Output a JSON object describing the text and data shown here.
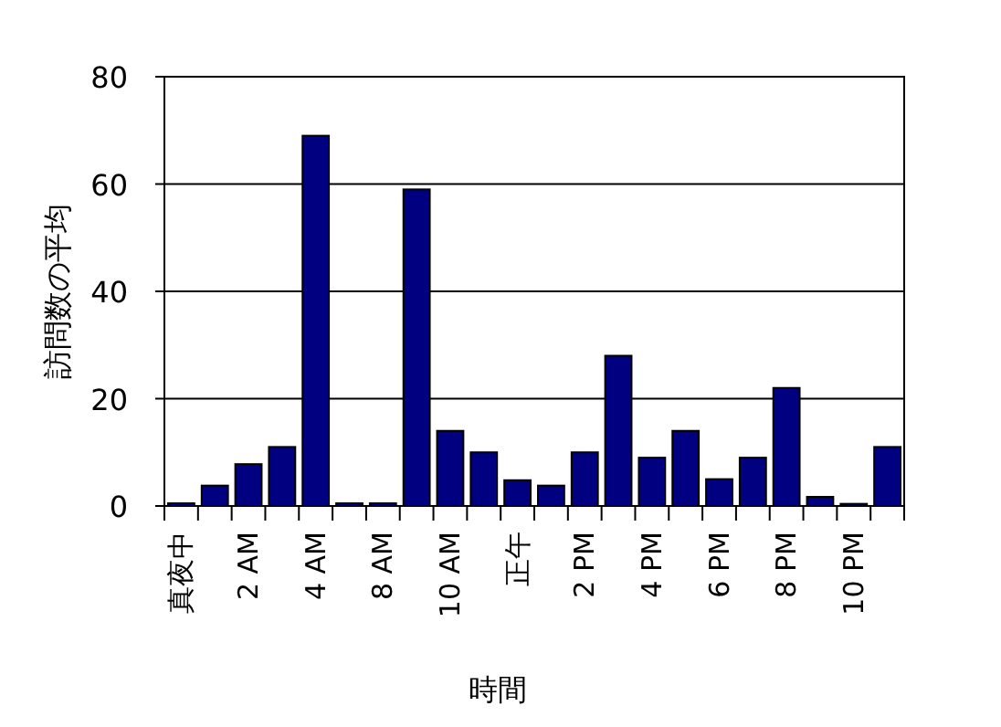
{
  "chart_data": {
    "type": "bar",
    "xlabel": "時間",
    "ylabel": "訪問数の平均",
    "categories": [
      "真夜中",
      null,
      "2 AM",
      null,
      "4 AM",
      null,
      "8 AM",
      null,
      "10 AM",
      null,
      "正午",
      null,
      "2 PM",
      null,
      "4 PM",
      null,
      "6 PM",
      null,
      "8 PM",
      null,
      "10 PM",
      null
    ],
    "values": [
      0.5,
      3.8,
      7.8,
      11,
      69,
      0.5,
      0.5,
      59,
      14,
      10,
      4.8,
      3.8,
      10,
      28,
      9,
      14,
      5,
      9,
      22,
      1.7,
      0.4,
      11
    ],
    "color": "#000080",
    "ylim": [
      0,
      80
    ],
    "yticks": [
      0,
      20,
      40,
      60,
      80
    ],
    "grid": "y"
  }
}
